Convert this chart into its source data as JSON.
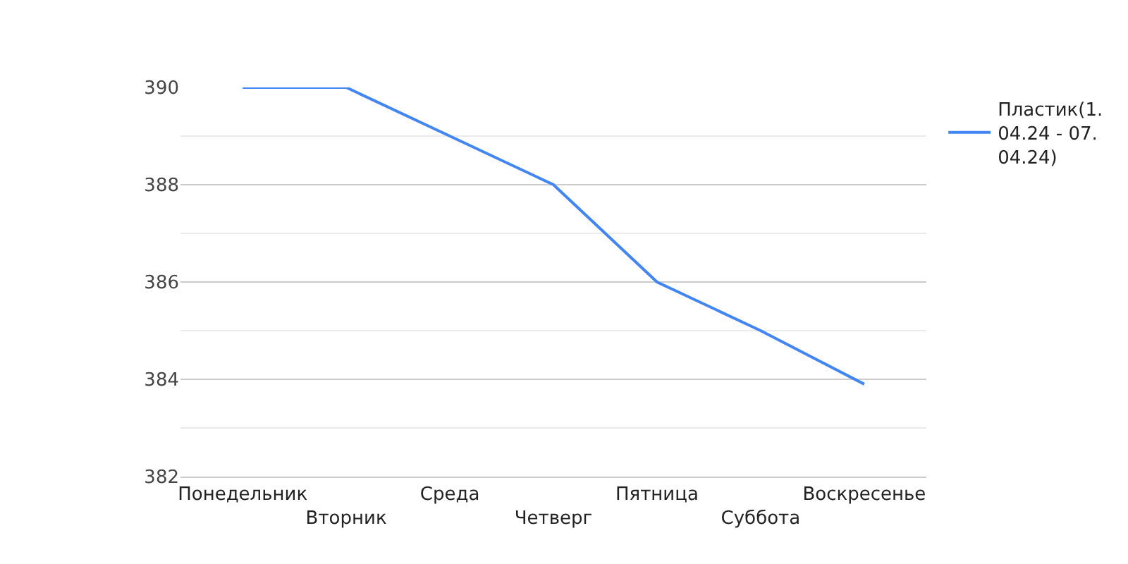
{
  "chart_data": {
    "type": "line",
    "categories": [
      "Понедельник",
      "Вторник",
      "Среда",
      "Четверг",
      "Пятница",
      "Суббота",
      "Воскресенье"
    ],
    "series": [
      {
        "name": "Пластик(1.04.24 - 07.04.24)",
        "color": "#4285f4",
        "values": [
          390,
          390,
          389,
          388,
          386,
          385,
          383.9
        ]
      }
    ],
    "ylim": [
      382,
      390
    ],
    "yticks": [
      382,
      {
        "value": 383,
        "label": null
      },
      384,
      {
        "value": 385,
        "label": null
      },
      386,
      {
        "value": 387,
        "label": null
      },
      388,
      {
        "value": 389,
        "label": null
      },
      390
    ],
    "grid": "y",
    "legend": "top right",
    "marker": "none",
    "line_style": "solid"
  }
}
